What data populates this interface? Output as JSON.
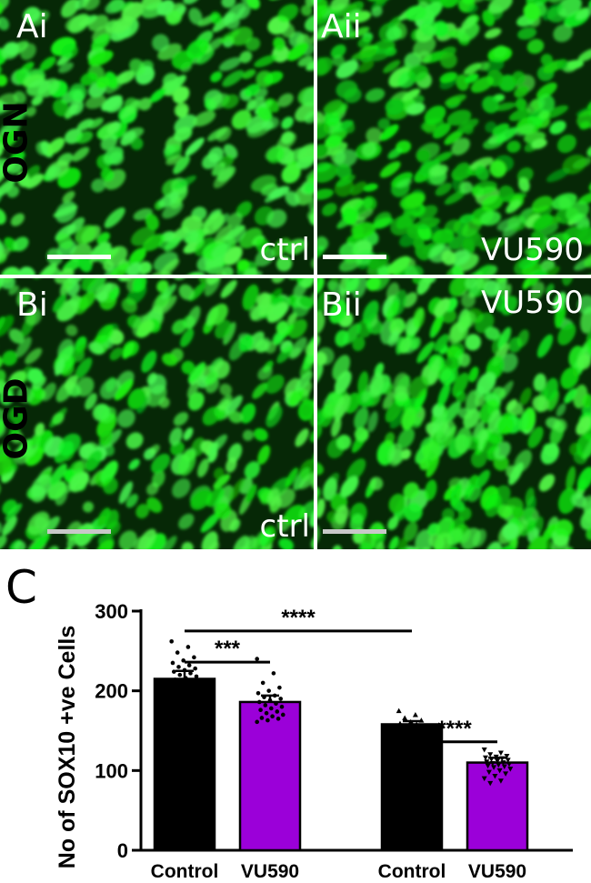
{
  "panels": {
    "ai": {
      "label": "Ai",
      "condition": "ctrl"
    },
    "aii": {
      "label": "Aii",
      "condition": "VU590"
    },
    "bi": {
      "label": "Bi",
      "condition": "ctrl"
    },
    "bii": {
      "label": "Bii",
      "condition": "VU590"
    }
  },
  "row_labels": {
    "top": "OGN",
    "bottom": "OGD"
  },
  "figure_label_c": "C",
  "colors": {
    "control_bar": "#000000",
    "vu590_bar": "#9b00d9",
    "fluorescence": "#2ee02e",
    "scalebar_top": "#ffffff",
    "scalebar_bottom": "#c8c8c8"
  },
  "chart_data": {
    "type": "bar",
    "ylabel": "No of SOX10 +ve Cells",
    "ylim": [
      0,
      300
    ],
    "yticks": [
      0,
      100,
      200,
      300
    ],
    "categories": [
      "Control",
      "VU590",
      "Control",
      "VU590"
    ],
    "groups": [
      "OGN",
      "OGD"
    ],
    "values": [
      215,
      186,
      158,
      110
    ],
    "errors": [
      10,
      8,
      4,
      6
    ],
    "bar_colors": [
      "#000000",
      "#9b00d9",
      "#000000",
      "#9b00d9"
    ],
    "points": [
      [
        262,
        255,
        248,
        242,
        238,
        235,
        232,
        230,
        228,
        226,
        224,
        222,
        220,
        218,
        216,
        214,
        212,
        210,
        208,
        205
      ],
      [
        240,
        222,
        210,
        204,
        200,
        197,
        194,
        192,
        190,
        188,
        186,
        184,
        182,
        180,
        178,
        176,
        174,
        172,
        170,
        168,
        166,
        165,
        163,
        161
      ],
      [
        175,
        170,
        166,
        163,
        161,
        159,
        158,
        156
      ],
      [
        126,
        122,
        120,
        118,
        117,
        116,
        115,
        114,
        113,
        112,
        111,
        110,
        109,
        108,
        107,
        106,
        105,
        104,
        102,
        100,
        98,
        96,
        93,
        90,
        87,
        84
      ]
    ],
    "significance": [
      {
        "from": 0,
        "to": 2,
        "label": "****",
        "level": 275
      },
      {
        "from": 0,
        "to": 1,
        "label": "***",
        "level": 236
      },
      {
        "from": 2,
        "to": 3,
        "label": "****",
        "level": 136
      }
    ]
  }
}
